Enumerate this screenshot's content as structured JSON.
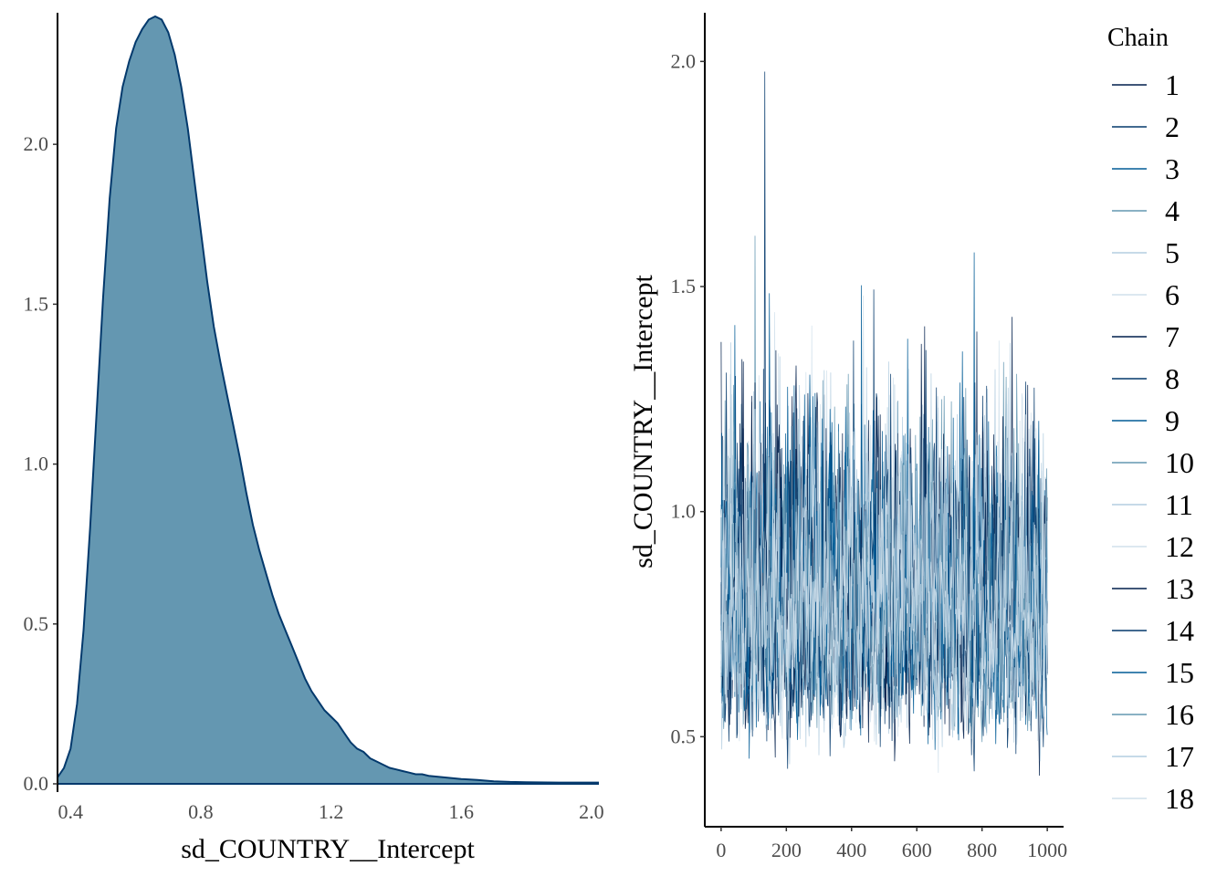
{
  "chart_data": [
    {
      "type": "area",
      "subtype": "density",
      "xlabel": "sd_COUNTRY__Intercept",
      "ylabel": "",
      "xlim": [
        0.36,
        2.02
      ],
      "ylim": [
        -0.02,
        2.4
      ],
      "xticks": [
        "0.4",
        "0.8",
        "1.2",
        "1.6",
        "2.0"
      ],
      "yticks": [
        "0.0",
        "0.5",
        "1.0",
        "1.5",
        "2.0"
      ],
      "grid": false,
      "fill_color": "#6497b1",
      "line_color": "#03396c",
      "x": [
        0.36,
        0.38,
        0.4,
        0.42,
        0.44,
        0.46,
        0.48,
        0.5,
        0.52,
        0.54,
        0.56,
        0.58,
        0.6,
        0.62,
        0.64,
        0.66,
        0.68,
        0.7,
        0.72,
        0.74,
        0.76,
        0.78,
        0.8,
        0.82,
        0.84,
        0.86,
        0.88,
        0.9,
        0.92,
        0.94,
        0.96,
        0.98,
        1.0,
        1.02,
        1.04,
        1.06,
        1.08,
        1.1,
        1.12,
        1.14,
        1.16,
        1.18,
        1.2,
        1.22,
        1.24,
        1.26,
        1.28,
        1.3,
        1.32,
        1.34,
        1.36,
        1.38,
        1.4,
        1.42,
        1.44,
        1.46,
        1.48,
        1.5,
        1.55,
        1.6,
        1.65,
        1.7,
        1.75,
        1.8,
        1.9,
        2.02
      ],
      "y": [
        0.02,
        0.05,
        0.11,
        0.25,
        0.48,
        0.8,
        1.16,
        1.52,
        1.83,
        2.05,
        2.18,
        2.26,
        2.32,
        2.36,
        2.39,
        2.4,
        2.39,
        2.35,
        2.28,
        2.18,
        2.05,
        1.89,
        1.73,
        1.57,
        1.43,
        1.32,
        1.22,
        1.12,
        1.02,
        0.91,
        0.81,
        0.73,
        0.66,
        0.59,
        0.53,
        0.48,
        0.43,
        0.38,
        0.33,
        0.29,
        0.26,
        0.23,
        0.21,
        0.19,
        0.16,
        0.13,
        0.11,
        0.1,
        0.08,
        0.07,
        0.06,
        0.05,
        0.045,
        0.04,
        0.035,
        0.03,
        0.03,
        0.025,
        0.02,
        0.015,
        0.012,
        0.008,
        0.006,
        0.005,
        0.004,
        0.004
      ]
    },
    {
      "type": "line",
      "subtype": "trace",
      "xlabel": "",
      "ylabel": "sd_COUNTRY__Intercept",
      "xlim": [
        -50,
        1050
      ],
      "ylim": [
        0.3,
        2.1
      ],
      "xticks": [
        "0",
        "200",
        "400",
        "600",
        "800",
        "1000"
      ],
      "yticks": [
        "0.5",
        "1.0",
        "1.5",
        "2.0"
      ],
      "grid": false,
      "iterations": 1000,
      "legend": {
        "title": "Chain",
        "position": "right",
        "entries": [
          "1",
          "2",
          "3",
          "4",
          "5",
          "6",
          "7",
          "8",
          "9",
          "10",
          "11",
          "12",
          "13",
          "14",
          "15",
          "16",
          "17",
          "18"
        ]
      },
      "series_colors": [
        "#011f4b",
        "#03396c",
        "#005b96",
        "#6497b1",
        "#b3cde0",
        "#d1e1ec",
        "#011f4b",
        "#03396c",
        "#005b96",
        "#6497b1",
        "#b3cde0",
        "#d1e1ec",
        "#011f4b",
        "#03396c",
        "#005b96",
        "#6497b1",
        "#b3cde0",
        "#d1e1ec"
      ],
      "value_range": [
        0.36,
        2.02
      ],
      "typical_center": 0.8
    }
  ]
}
